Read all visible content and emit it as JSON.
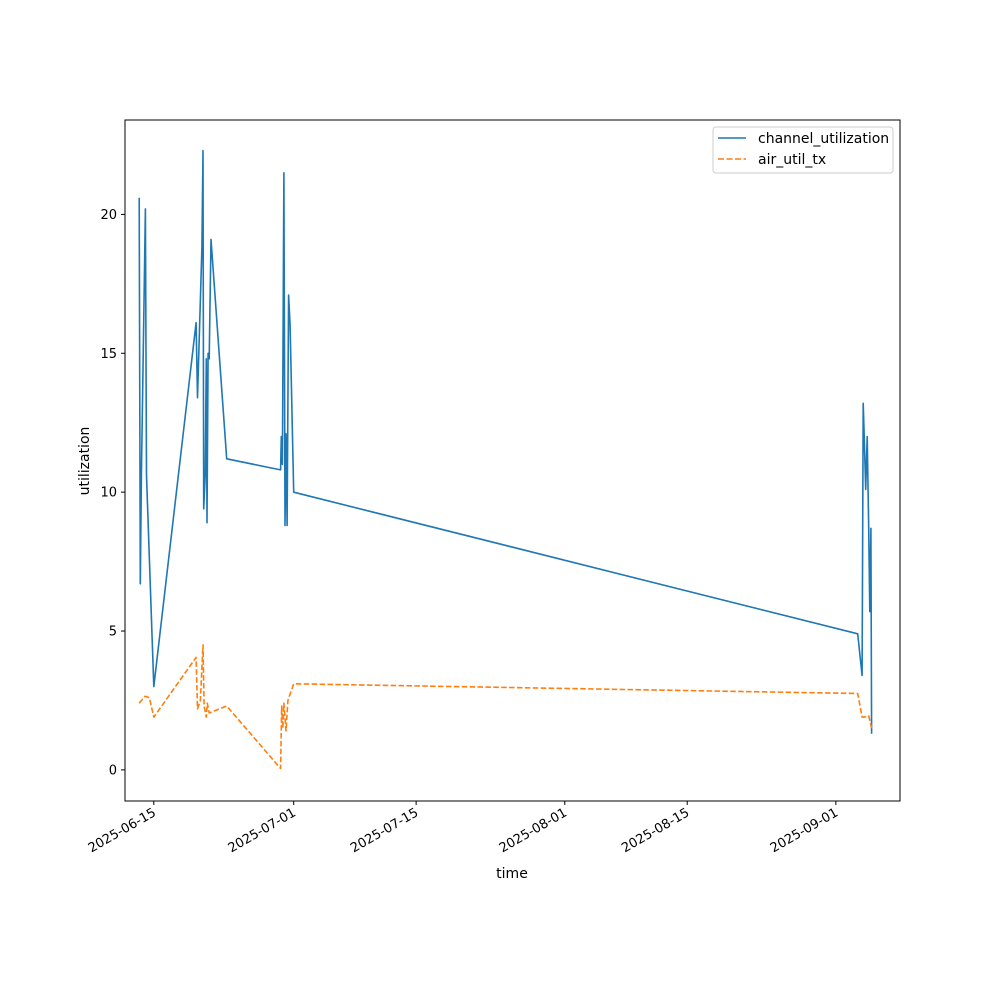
{
  "chart_data": {
    "type": "line",
    "xlabel": "time",
    "ylabel": "utilization",
    "x_axis": {
      "kind": "date",
      "range": [
        "2025-06-11T17:00",
        "2025-09-08T08:00"
      ],
      "ticks": [
        "2025-06-15",
        "2025-07-01",
        "2025-07-15",
        "2025-08-01",
        "2025-08-15",
        "2025-09-01"
      ]
    },
    "y_axis": {
      "range": [
        -1.12,
        23.4
      ],
      "ticks": [
        0,
        5,
        10,
        15,
        20
      ]
    },
    "grid": false,
    "legend": {
      "placement": "upper right"
    },
    "series": [
      {
        "name": "channel_utilization",
        "color": "#1f77b4",
        "style": "solid",
        "points": [
          [
            "2025-06-13T08:00",
            20.6
          ],
          [
            "2025-06-13T11:00",
            6.7
          ],
          [
            "2025-06-13T14:00",
            10.6
          ],
          [
            "2025-06-14T01:00",
            20.2
          ],
          [
            "2025-06-14T04:00",
            10.6
          ],
          [
            "2025-06-15T00:00",
            3.0
          ],
          [
            "2025-06-19T20:00",
            16.1
          ],
          [
            "2025-06-20T00:00",
            13.4
          ],
          [
            "2025-06-20T12:00",
            18.8
          ],
          [
            "2025-06-20T15:00",
            22.3
          ],
          [
            "2025-06-20T17:00",
            9.4
          ],
          [
            "2025-06-20T21:00",
            10.6
          ],
          [
            "2025-06-21T00:00",
            14.8
          ],
          [
            "2025-06-21T02:00",
            8.9
          ],
          [
            "2025-06-21T05:00",
            15.0
          ],
          [
            "2025-06-21T08:00",
            14.8
          ],
          [
            "2025-06-21T13:00",
            19.1
          ],
          [
            "2025-06-23T08:00",
            11.2
          ],
          [
            "2025-06-29T12:00",
            10.8
          ],
          [
            "2025-06-29T14:00",
            12.0
          ],
          [
            "2025-06-29T17:00",
            11.0
          ],
          [
            "2025-06-29T21:00",
            21.5
          ],
          [
            "2025-06-30T00:00",
            8.8
          ],
          [
            "2025-06-30T03:00",
            12.1
          ],
          [
            "2025-06-30T06:00",
            8.8
          ],
          [
            "2025-06-30T10:00",
            17.1
          ],
          [
            "2025-06-30T14:00",
            16.0
          ],
          [
            "2025-07-01T00:00",
            10.0
          ],
          [
            "2025-09-03T12:00",
            4.9
          ],
          [
            "2025-09-04T00:00",
            3.4
          ],
          [
            "2025-09-04T03:00",
            13.2
          ],
          [
            "2025-09-04T06:00",
            11.9
          ],
          [
            "2025-09-04T10:00",
            10.1
          ],
          [
            "2025-09-04T14:00",
            12.0
          ],
          [
            "2025-09-04T18:00",
            8.7
          ],
          [
            "2025-09-04T21:00",
            5.7
          ],
          [
            "2025-09-05T00:00",
            8.7
          ],
          [
            "2025-09-05T02:00",
            1.3
          ]
        ]
      },
      {
        "name": "air_util_tx",
        "color": "#ff7f0e",
        "style": "dashed",
        "points": [
          [
            "2025-06-13T08:00",
            2.4
          ],
          [
            "2025-06-14T00:00",
            2.65
          ],
          [
            "2025-06-14T12:00",
            2.6
          ],
          [
            "2025-06-15T00:00",
            1.9
          ],
          [
            "2025-06-19T20:00",
            4.05
          ],
          [
            "2025-06-20T00:00",
            2.2
          ],
          [
            "2025-06-20T08:00",
            2.5
          ],
          [
            "2025-06-20T15:00",
            4.5
          ],
          [
            "2025-06-20T18:00",
            2.3
          ],
          [
            "2025-06-21T00:00",
            1.9
          ],
          [
            "2025-06-21T03:00",
            2.4
          ],
          [
            "2025-06-21T08:00",
            2.05
          ],
          [
            "2025-06-23T08:00",
            2.3
          ],
          [
            "2025-06-29T12:00",
            0.05
          ],
          [
            "2025-06-29T15:00",
            2.3
          ],
          [
            "2025-06-29T18:00",
            1.5
          ],
          [
            "2025-06-29T21:00",
            2.4
          ],
          [
            "2025-06-30T03:00",
            1.4
          ],
          [
            "2025-06-30T08:00",
            2.5
          ],
          [
            "2025-07-01T00:00",
            3.1
          ],
          [
            "2025-09-03T12:00",
            2.75
          ],
          [
            "2025-09-04T00:00",
            1.9
          ],
          [
            "2025-09-04T06:00",
            1.9
          ],
          [
            "2025-09-04T18:00",
            1.95
          ],
          [
            "2025-09-05T02:00",
            1.5
          ]
        ]
      }
    ]
  }
}
